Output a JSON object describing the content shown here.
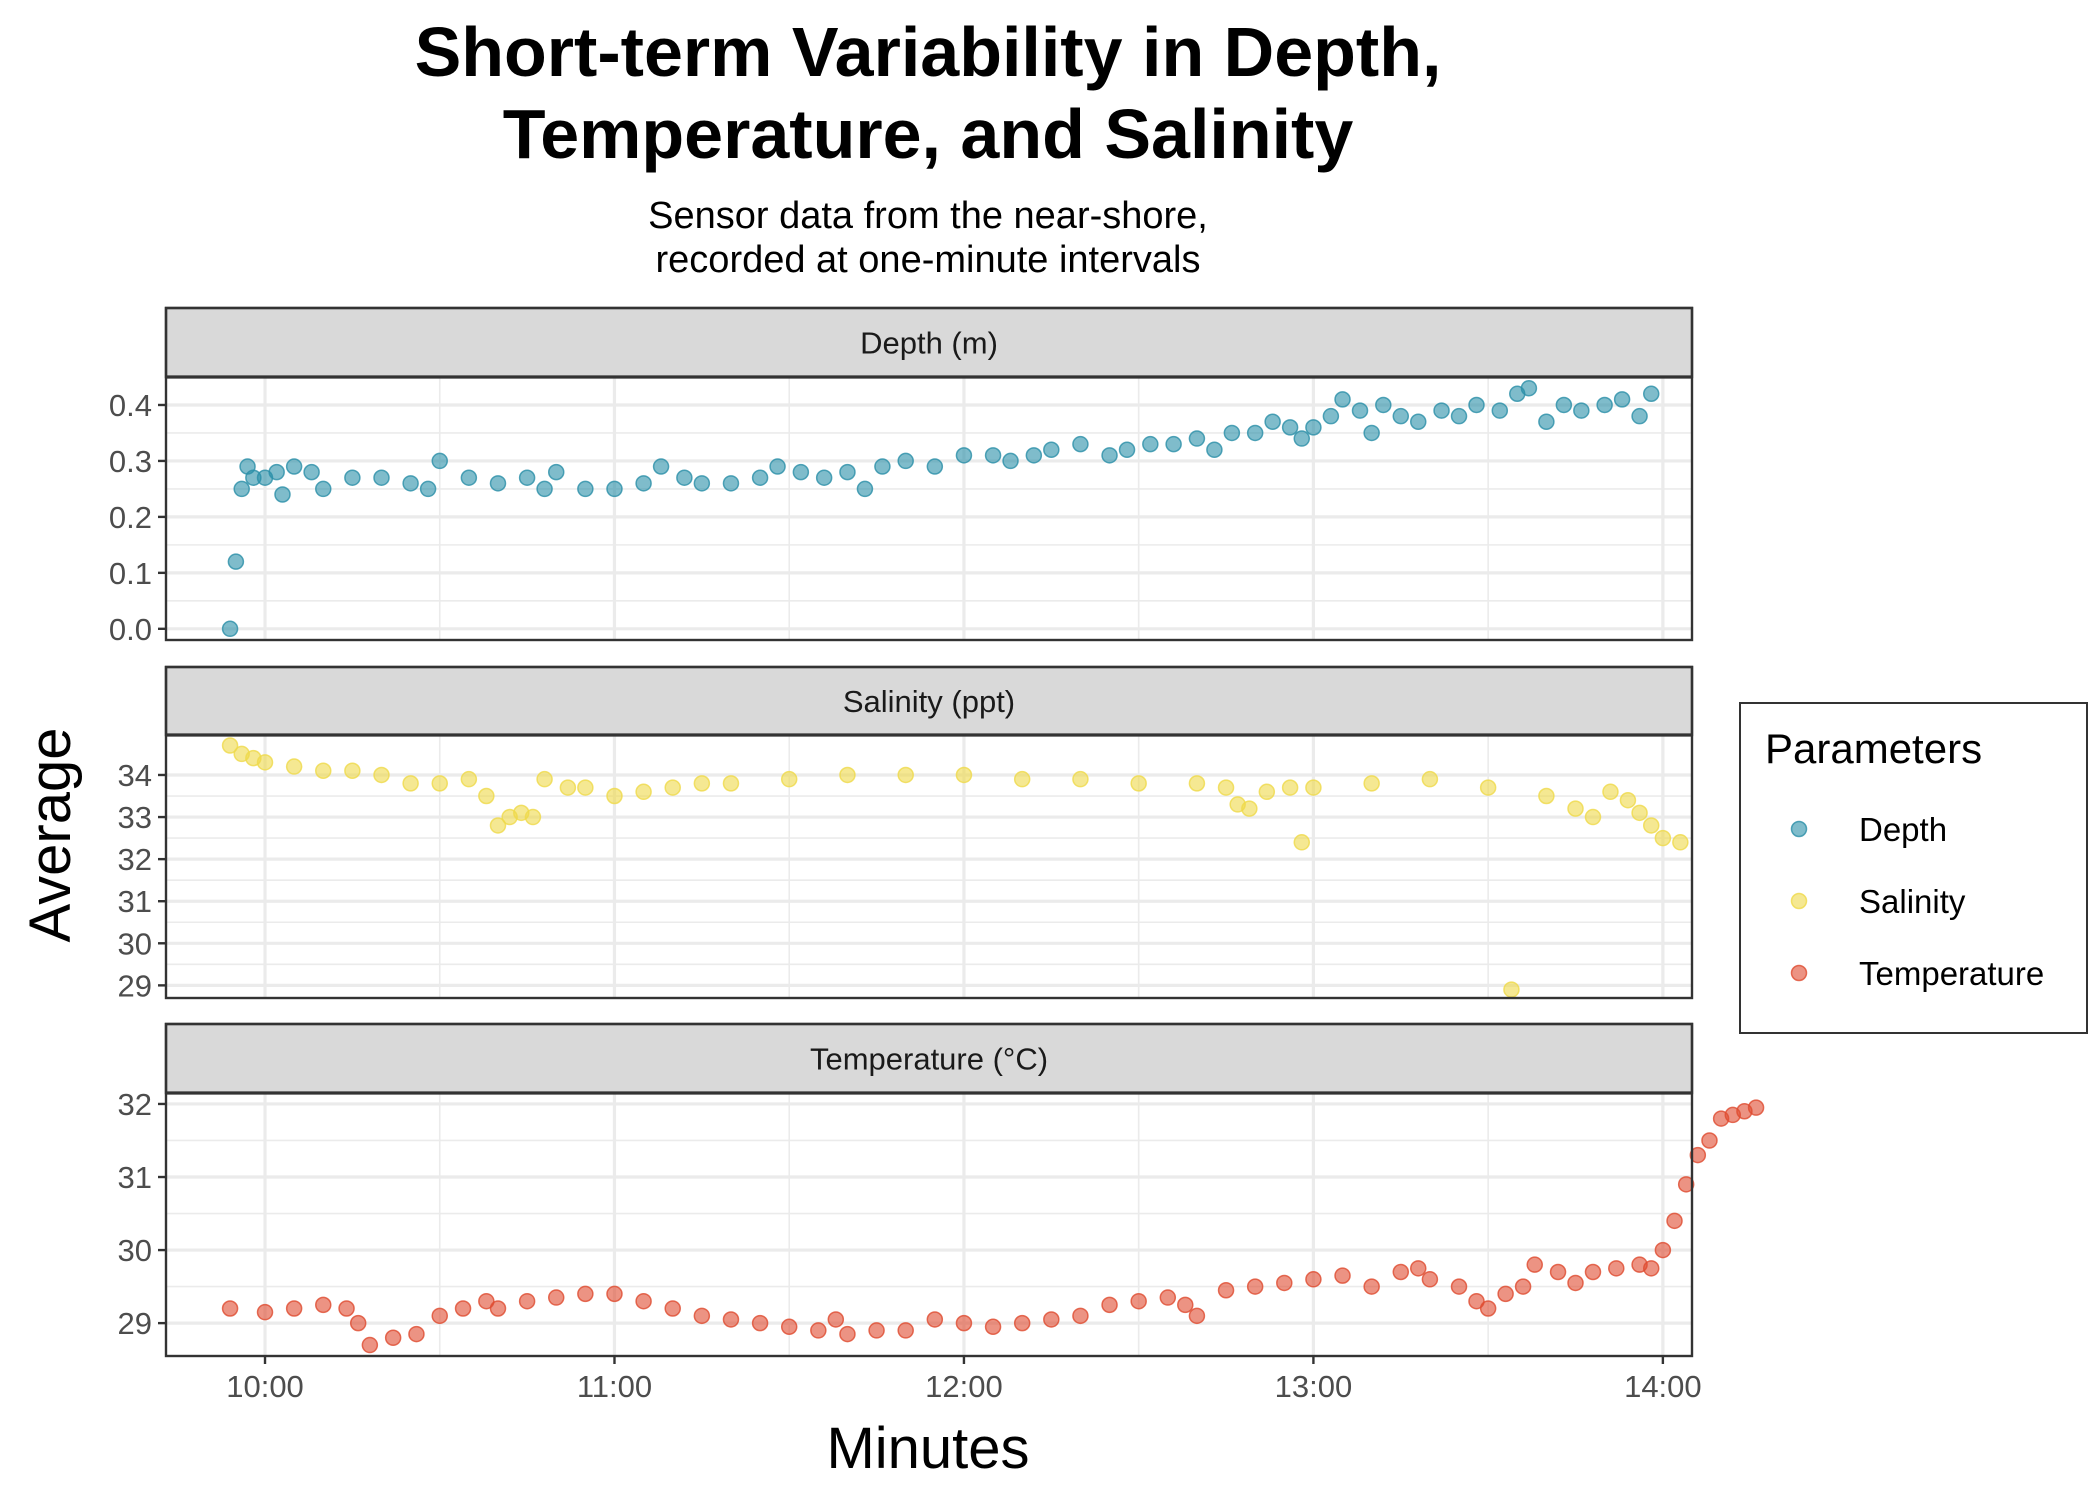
{
  "chart_data": {
    "type": "scatter",
    "title": "Short-term Variability in Depth,\nTemperature, and Salinity",
    "subtitle": "Sensor data from the near-shore,\nrecorded at one-minute intervals",
    "xlabel": "Minutes",
    "ylabel": "Average",
    "x_ticks": [
      "10:00",
      "11:00",
      "12:00",
      "13:00",
      "14:00"
    ],
    "xlim": [
      "09:43",
      "14:05"
    ],
    "legend": {
      "title": "Parameters",
      "placement": "right",
      "entries": [
        {
          "label": "Depth",
          "color": "#2a8fa8"
        },
        {
          "label": "Salinity",
          "color": "#efd94a"
        },
        {
          "label": "Temperature",
          "color": "#df4b30"
        }
      ]
    },
    "facets": [
      {
        "strip": "Depth (m)",
        "series": "Depth",
        "ylim": [
          -0.02,
          0.45
        ],
        "y_ticks": [
          0.0,
          0.1,
          0.2,
          0.3,
          0.4
        ],
        "y_tick_labels": [
          "0.0",
          "0.1",
          "0.2",
          "0.3",
          "0.4"
        ],
        "points": [
          [
            "09:54",
            0.0
          ],
          [
            "09:55",
            0.12
          ],
          [
            "09:56",
            0.25
          ],
          [
            "09:57",
            0.29
          ],
          [
            "09:58",
            0.27
          ],
          [
            "10:00",
            0.27
          ],
          [
            "10:02",
            0.28
          ],
          [
            "10:03",
            0.24
          ],
          [
            "10:05",
            0.29
          ],
          [
            "10:08",
            0.28
          ],
          [
            "10:10",
            0.25
          ],
          [
            "10:15",
            0.27
          ],
          [
            "10:20",
            0.27
          ],
          [
            "10:25",
            0.26
          ],
          [
            "10:28",
            0.25
          ],
          [
            "10:30",
            0.3
          ],
          [
            "10:35",
            0.27
          ],
          [
            "10:40",
            0.26
          ],
          [
            "10:45",
            0.27
          ],
          [
            "10:48",
            0.25
          ],
          [
            "10:50",
            0.28
          ],
          [
            "10:55",
            0.25
          ],
          [
            "11:00",
            0.25
          ],
          [
            "11:05",
            0.26
          ],
          [
            "11:08",
            0.29
          ],
          [
            "11:12",
            0.27
          ],
          [
            "11:15",
            0.26
          ],
          [
            "11:20",
            0.26
          ],
          [
            "11:25",
            0.27
          ],
          [
            "11:28",
            0.29
          ],
          [
            "11:32",
            0.28
          ],
          [
            "11:36",
            0.27
          ],
          [
            "11:40",
            0.28
          ],
          [
            "11:43",
            0.25
          ],
          [
            "11:46",
            0.29
          ],
          [
            "11:50",
            0.3
          ],
          [
            "11:55",
            0.29
          ],
          [
            "12:00",
            0.31
          ],
          [
            "12:05",
            0.31
          ],
          [
            "12:08",
            0.3
          ],
          [
            "12:12",
            0.31
          ],
          [
            "12:15",
            0.32
          ],
          [
            "12:20",
            0.33
          ],
          [
            "12:25",
            0.31
          ],
          [
            "12:28",
            0.32
          ],
          [
            "12:32",
            0.33
          ],
          [
            "12:36",
            0.33
          ],
          [
            "12:40",
            0.34
          ],
          [
            "12:43",
            0.32
          ],
          [
            "12:46",
            0.35
          ],
          [
            "12:50",
            0.35
          ],
          [
            "12:53",
            0.37
          ],
          [
            "12:56",
            0.36
          ],
          [
            "12:58",
            0.34
          ],
          [
            "13:00",
            0.36
          ],
          [
            "13:03",
            0.38
          ],
          [
            "13:05",
            0.41
          ],
          [
            "13:08",
            0.39
          ],
          [
            "13:10",
            0.35
          ],
          [
            "13:12",
            0.4
          ],
          [
            "13:15",
            0.38
          ],
          [
            "13:18",
            0.37
          ],
          [
            "13:22",
            0.39
          ],
          [
            "13:25",
            0.38
          ],
          [
            "13:28",
            0.4
          ],
          [
            "13:32",
            0.39
          ],
          [
            "13:35",
            0.42
          ],
          [
            "13:37",
            0.43
          ],
          [
            "13:40",
            0.37
          ],
          [
            "13:43",
            0.4
          ],
          [
            "13:46",
            0.39
          ],
          [
            "13:50",
            0.4
          ],
          [
            "13:53",
            0.41
          ],
          [
            "13:56",
            0.38
          ],
          [
            "13:58",
            0.42
          ]
        ]
      },
      {
        "strip": "Salinity (ppt)",
        "series": "Salinity",
        "ylim": [
          28.7,
          34.95
        ],
        "y_ticks": [
          29,
          30,
          31,
          32,
          33,
          34
        ],
        "y_tick_labels": [
          "29",
          "30",
          "31",
          "32",
          "33",
          "34"
        ],
        "points": [
          [
            "09:54",
            34.7
          ],
          [
            "09:56",
            34.5
          ],
          [
            "09:58",
            34.4
          ],
          [
            "10:00",
            34.3
          ],
          [
            "10:05",
            34.2
          ],
          [
            "10:10",
            34.1
          ],
          [
            "10:15",
            34.1
          ],
          [
            "10:20",
            34.0
          ],
          [
            "10:25",
            33.8
          ],
          [
            "10:30",
            33.8
          ],
          [
            "10:35",
            33.9
          ],
          [
            "10:38",
            33.5
          ],
          [
            "10:40",
            32.8
          ],
          [
            "10:42",
            33.0
          ],
          [
            "10:44",
            33.1
          ],
          [
            "10:46",
            33.0
          ],
          [
            "10:48",
            33.9
          ],
          [
            "10:52",
            33.7
          ],
          [
            "10:55",
            33.7
          ],
          [
            "11:00",
            33.5
          ],
          [
            "11:05",
            33.6
          ],
          [
            "11:10",
            33.7
          ],
          [
            "11:15",
            33.8
          ],
          [
            "11:20",
            33.8
          ],
          [
            "11:30",
            33.9
          ],
          [
            "11:40",
            34.0
          ],
          [
            "11:50",
            34.0
          ],
          [
            "12:00",
            34.0
          ],
          [
            "12:10",
            33.9
          ],
          [
            "12:20",
            33.9
          ],
          [
            "12:30",
            33.8
          ],
          [
            "12:40",
            33.8
          ],
          [
            "12:45",
            33.7
          ],
          [
            "12:47",
            33.3
          ],
          [
            "12:49",
            33.2
          ],
          [
            "12:52",
            33.6
          ],
          [
            "12:56",
            33.7
          ],
          [
            "12:58",
            32.4
          ],
          [
            "13:00",
            33.7
          ],
          [
            "13:10",
            33.8
          ],
          [
            "13:20",
            33.9
          ],
          [
            "13:30",
            33.7
          ],
          [
            "13:34",
            28.9
          ],
          [
            "13:40",
            33.5
          ],
          [
            "13:45",
            33.2
          ],
          [
            "13:48",
            33.0
          ],
          [
            "13:51",
            33.6
          ],
          [
            "13:54",
            33.4
          ],
          [
            "13:56",
            33.1
          ],
          [
            "13:58",
            32.8
          ],
          [
            "14:00",
            32.5
          ],
          [
            "14:03",
            32.4
          ]
        ]
      },
      {
        "strip": "Temperature (°C)",
        "series": "Temperature",
        "ylim": [
          28.55,
          32.15
        ],
        "y_ticks": [
          29,
          30,
          31,
          32
        ],
        "y_tick_labels": [
          "29",
          "30",
          "31",
          "32"
        ],
        "points": [
          [
            "09:54",
            29.2
          ],
          [
            "10:00",
            29.15
          ],
          [
            "10:05",
            29.2
          ],
          [
            "10:10",
            29.25
          ],
          [
            "10:14",
            29.2
          ],
          [
            "10:16",
            29.0
          ],
          [
            "10:18",
            28.7
          ],
          [
            "10:22",
            28.8
          ],
          [
            "10:26",
            28.85
          ],
          [
            "10:30",
            29.1
          ],
          [
            "10:34",
            29.2
          ],
          [
            "10:38",
            29.3
          ],
          [
            "10:40",
            29.2
          ],
          [
            "10:45",
            29.3
          ],
          [
            "10:50",
            29.35
          ],
          [
            "10:55",
            29.4
          ],
          [
            "11:00",
            29.4
          ],
          [
            "11:05",
            29.3
          ],
          [
            "11:10",
            29.2
          ],
          [
            "11:15",
            29.1
          ],
          [
            "11:20",
            29.05
          ],
          [
            "11:25",
            29.0
          ],
          [
            "11:30",
            28.95
          ],
          [
            "11:35",
            28.9
          ],
          [
            "11:38",
            29.05
          ],
          [
            "11:40",
            28.85
          ],
          [
            "11:45",
            28.9
          ],
          [
            "11:50",
            28.9
          ],
          [
            "11:55",
            29.05
          ],
          [
            "12:00",
            29.0
          ],
          [
            "12:05",
            28.95
          ],
          [
            "12:10",
            29.0
          ],
          [
            "12:15",
            29.05
          ],
          [
            "12:20",
            29.1
          ],
          [
            "12:25",
            29.25
          ],
          [
            "12:30",
            29.3
          ],
          [
            "12:35",
            29.35
          ],
          [
            "12:38",
            29.25
          ],
          [
            "12:40",
            29.1
          ],
          [
            "12:45",
            29.45
          ],
          [
            "12:50",
            29.5
          ],
          [
            "12:55",
            29.55
          ],
          [
            "13:00",
            29.6
          ],
          [
            "13:05",
            29.65
          ],
          [
            "13:10",
            29.5
          ],
          [
            "13:15",
            29.7
          ],
          [
            "13:18",
            29.75
          ],
          [
            "13:20",
            29.6
          ],
          [
            "13:25",
            29.5
          ],
          [
            "13:28",
            29.3
          ],
          [
            "13:30",
            29.2
          ],
          [
            "13:33",
            29.4
          ],
          [
            "13:36",
            29.5
          ],
          [
            "13:38",
            29.8
          ],
          [
            "13:42",
            29.7
          ],
          [
            "13:45",
            29.55
          ],
          [
            "13:48",
            29.7
          ],
          [
            "13:52",
            29.75
          ],
          [
            "13:56",
            29.8
          ],
          [
            "13:58",
            29.75
          ],
          [
            "14:00",
            30.0
          ],
          [
            "14:02",
            30.4
          ],
          [
            "14:04",
            30.9
          ],
          [
            "14:06",
            31.3
          ],
          [
            "14:08",
            31.5
          ],
          [
            "14:10",
            31.8
          ],
          [
            "14:12",
            31.85
          ],
          [
            "14:14",
            31.9
          ],
          [
            "14:16",
            31.95
          ]
        ]
      }
    ]
  }
}
